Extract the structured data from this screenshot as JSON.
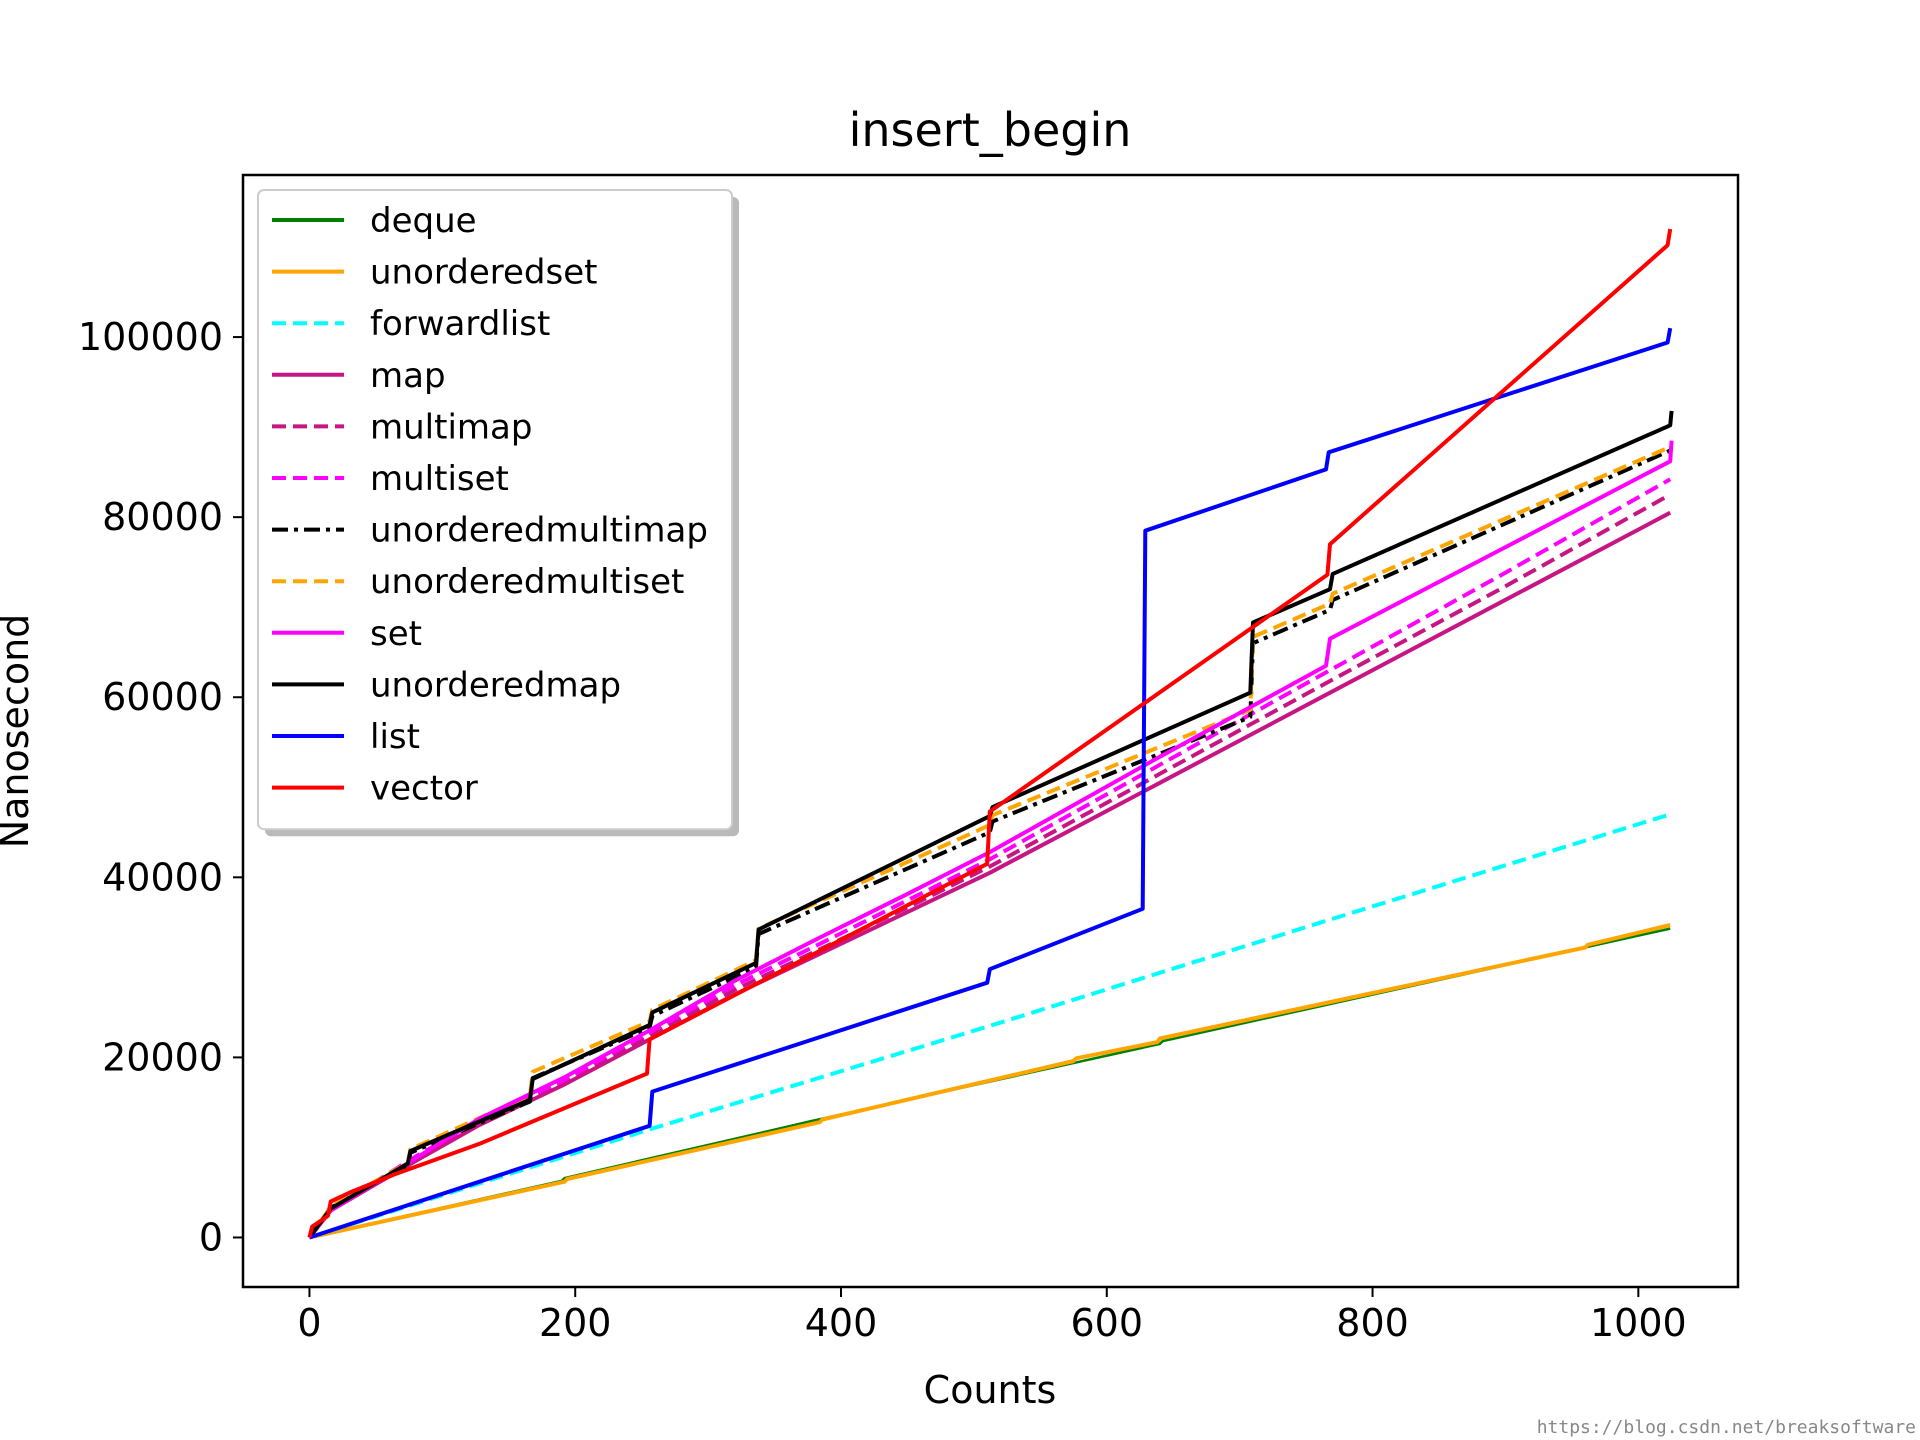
{
  "watermark": "https://blog.csdn.net/breaksoftware",
  "chart_data": {
    "type": "line",
    "title": "insert_begin",
    "xlabel": "Counts",
    "ylabel": "Nanosecond",
    "xlim": [
      -50,
      1075
    ],
    "ylim": [
      -5500,
      118000
    ],
    "xticks": [
      0,
      200,
      400,
      600,
      800,
      1000
    ],
    "xtick_labels": [
      "0",
      "200",
      "400",
      "600",
      "800",
      "1000"
    ],
    "yticks": [
      0,
      20000,
      40000,
      60000,
      80000,
      100000
    ],
    "ytick_labels": [
      "0",
      "20000",
      "40000",
      "60000",
      "80000",
      "100000"
    ],
    "grid": false,
    "legend_placement": "top-left",
    "series": [
      {
        "name": "deque",
        "color": "#008000",
        "dash": "solid",
        "points": [
          [
            0,
            0
          ],
          [
            190,
            6300
          ],
          [
            192,
            6600
          ],
          [
            380,
            13000
          ],
          [
            640,
            21500
          ],
          [
            642,
            21800
          ],
          [
            1024,
            34300
          ]
        ]
      },
      {
        "name": "unorderedset",
        "color": "#ffa500",
        "dash": "solid",
        "points": [
          [
            0,
            0
          ],
          [
            192,
            6200
          ],
          [
            194,
            6500
          ],
          [
            384,
            12800
          ],
          [
            386,
            13100
          ],
          [
            575,
            19600
          ],
          [
            577,
            19900
          ],
          [
            638,
            21700
          ],
          [
            640,
            22100
          ],
          [
            960,
            32200
          ],
          [
            962,
            32500
          ],
          [
            1024,
            34700
          ]
        ]
      },
      {
        "name": "forwardlist",
        "color": "#00ffff",
        "dash": "dashed",
        "points": [
          [
            0,
            0
          ],
          [
            256,
            12000
          ],
          [
            512,
            23500
          ],
          [
            768,
            35300
          ],
          [
            1024,
            47000
          ]
        ]
      },
      {
        "name": "map",
        "color": "#c71585",
        "dash": "solid",
        "points": [
          [
            0,
            0
          ],
          [
            16,
            3000
          ],
          [
            80,
            8500
          ],
          [
            128,
            12500
          ],
          [
            192,
            17000
          ],
          [
            256,
            22000
          ],
          [
            320,
            27000
          ],
          [
            384,
            31500
          ],
          [
            448,
            36000
          ],
          [
            512,
            40500
          ],
          [
            640,
            50500
          ],
          [
            768,
            60500
          ],
          [
            896,
            70500
          ],
          [
            1024,
            80500
          ]
        ]
      },
      {
        "name": "multimap",
        "color": "#c71585",
        "dash": "dashed",
        "points": [
          [
            0,
            0
          ],
          [
            16,
            3000
          ],
          [
            80,
            8800
          ],
          [
            128,
            12800
          ],
          [
            192,
            17300
          ],
          [
            256,
            22400
          ],
          [
            320,
            27500
          ],
          [
            384,
            32000
          ],
          [
            448,
            36500
          ],
          [
            512,
            41200
          ],
          [
            640,
            51500
          ],
          [
            768,
            61800
          ],
          [
            896,
            72000
          ],
          [
            1024,
            82500
          ]
        ]
      },
      {
        "name": "multiset",
        "color": "#ff00ff",
        "dash": "dashed",
        "points": [
          [
            0,
            0
          ],
          [
            16,
            3100
          ],
          [
            80,
            9000
          ],
          [
            128,
            13000
          ],
          [
            192,
            17500
          ],
          [
            256,
            22800
          ],
          [
            320,
            28000
          ],
          [
            384,
            32600
          ],
          [
            448,
            37300
          ],
          [
            512,
            42000
          ],
          [
            640,
            52500
          ],
          [
            768,
            63000
          ],
          [
            896,
            73500
          ],
          [
            1024,
            84200
          ]
        ]
      },
      {
        "name": "unorderedmultimap",
        "color": "#000000",
        "dash": "dashdot",
        "points": [
          [
            0,
            0
          ],
          [
            16,
            3300
          ],
          [
            74,
            8000
          ],
          [
            76,
            9400
          ],
          [
            166,
            15100
          ],
          [
            168,
            17700
          ],
          [
            256,
            23300
          ],
          [
            258,
            24600
          ],
          [
            336,
            30000
          ],
          [
            338,
            33700
          ],
          [
            512,
            45000
          ],
          [
            514,
            46200
          ],
          [
            708,
            57800
          ],
          [
            710,
            66000
          ],
          [
            768,
            69700
          ],
          [
            770,
            70800
          ],
          [
            1024,
            87400
          ]
        ]
      },
      {
        "name": "unorderedmultiset",
        "color": "#ffa500",
        "dash": "dashed",
        "points": [
          [
            0,
            0
          ],
          [
            16,
            3400
          ],
          [
            74,
            8300
          ],
          [
            76,
            9800
          ],
          [
            166,
            15800
          ],
          [
            168,
            18400
          ],
          [
            256,
            24000
          ],
          [
            258,
            25300
          ],
          [
            336,
            30800
          ],
          [
            338,
            34300
          ],
          [
            512,
            45800
          ],
          [
            514,
            46900
          ],
          [
            708,
            58600
          ],
          [
            710,
            66700
          ],
          [
            768,
            70400
          ],
          [
            770,
            71500
          ],
          [
            1024,
            87800
          ]
        ]
      },
      {
        "name": "set",
        "color": "#ff00ff",
        "dash": "solid",
        "points": [
          [
            0,
            0
          ],
          [
            16,
            3000
          ],
          [
            80,
            8800
          ],
          [
            128,
            13200
          ],
          [
            192,
            17800
          ],
          [
            256,
            23000
          ],
          [
            320,
            28500
          ],
          [
            384,
            33300
          ],
          [
            448,
            38000
          ],
          [
            512,
            42800
          ],
          [
            640,
            53400
          ],
          [
            765,
            63500
          ],
          [
            768,
            66500
          ],
          [
            1024,
            86200
          ],
          [
            1025,
            88500
          ]
        ]
      },
      {
        "name": "unorderedmap",
        "color": "#000000",
        "dash": "solid",
        "points": [
          [
            0,
            0
          ],
          [
            16,
            3200
          ],
          [
            74,
            8200
          ],
          [
            76,
            9600
          ],
          [
            166,
            15300
          ],
          [
            168,
            17600
          ],
          [
            256,
            23600
          ],
          [
            258,
            25000
          ],
          [
            336,
            30500
          ],
          [
            338,
            34200
          ],
          [
            512,
            46800
          ],
          [
            514,
            47800
          ],
          [
            708,
            60500
          ],
          [
            710,
            68300
          ],
          [
            768,
            72000
          ],
          [
            770,
            73700
          ],
          [
            1024,
            90200
          ],
          [
            1025,
            91800
          ]
        ]
      },
      {
        "name": "list",
        "color": "#0000ff",
        "dash": "solid",
        "points": [
          [
            0,
            0
          ],
          [
            256,
            12400
          ],
          [
            258,
            16200
          ],
          [
            510,
            28300
          ],
          [
            512,
            29800
          ],
          [
            627,
            36500
          ],
          [
            629,
            78500
          ],
          [
            765,
            85300
          ],
          [
            767,
            87200
          ],
          [
            1022,
            99400
          ],
          [
            1024,
            101000
          ]
        ]
      },
      {
        "name": "vector",
        "color": "#ff0000",
        "dash": "solid",
        "points": [
          [
            0,
            0
          ],
          [
            2,
            1200
          ],
          [
            14,
            2400
          ],
          [
            16,
            4000
          ],
          [
            32,
            5100
          ],
          [
            64,
            7000
          ],
          [
            128,
            10400
          ],
          [
            254,
            18200
          ],
          [
            256,
            22000
          ],
          [
            510,
            41500
          ],
          [
            512,
            47300
          ],
          [
            766,
            73600
          ],
          [
            768,
            77000
          ],
          [
            1022,
            110200
          ],
          [
            1024,
            112000
          ]
        ]
      }
    ]
  }
}
